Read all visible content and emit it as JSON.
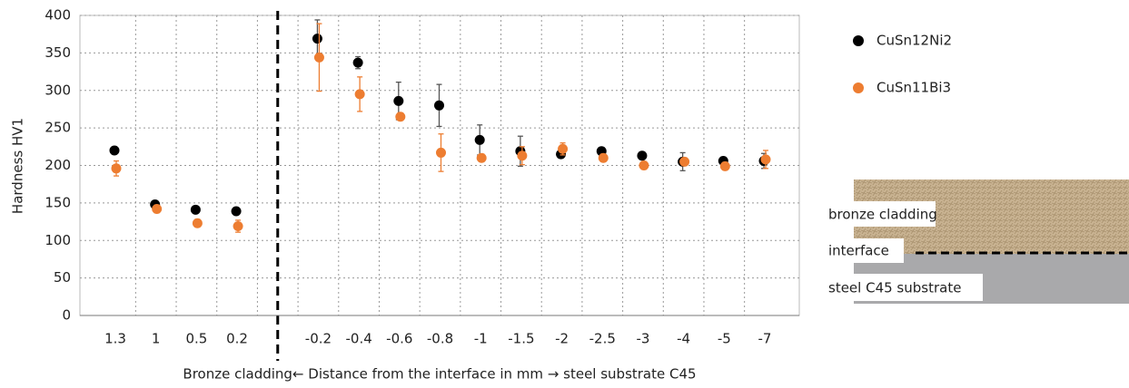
{
  "chart_data": {
    "type": "scatter",
    "y_label": "Hardness HV1",
    "x_label": "Bronze cladding← Distance from the interface in mm → steel  substrate C45",
    "categories": [
      "1.3",
      "1",
      "0.5",
      "0.2",
      null,
      "-0.2",
      "-0.4",
      "-0.6",
      "-0.8",
      "-1",
      "-1.5",
      "-2",
      "-2.5",
      "-3",
      "-4",
      "-5",
      "-7"
    ],
    "series": [
      {
        "name": "CuSn12Ni2",
        "color": "#000000",
        "values": [
          220,
          148,
          141,
          139,
          null,
          369,
          337,
          286,
          280,
          234,
          219,
          215,
          219,
          213,
          205,
          206,
          206
        ],
        "errors": [
          3,
          3,
          3,
          3,
          null,
          25,
          8,
          25,
          28,
          20,
          20,
          5,
          5,
          5,
          12,
          5,
          10
        ]
      },
      {
        "name": "CuSn11Bi3",
        "color": "#ed7d31",
        "values": [
          196,
          142,
          123,
          119,
          null,
          344,
          295,
          265,
          217,
          210,
          213,
          222,
          210,
          200,
          205,
          199,
          208
        ],
        "errors": [
          10,
          5,
          5,
          8,
          null,
          45,
          23,
          5,
          25,
          5,
          12,
          8,
          5,
          5,
          5,
          5,
          12
        ]
      }
    ],
    "ylim": [
      0,
      400
    ],
    "yticks": [
      0,
      50,
      100,
      150,
      200,
      250,
      300,
      350,
      400
    ],
    "grid": true,
    "legend": "right",
    "annotations": [
      "bronze cladding",
      "interface",
      "steel C45 substrate"
    ]
  }
}
